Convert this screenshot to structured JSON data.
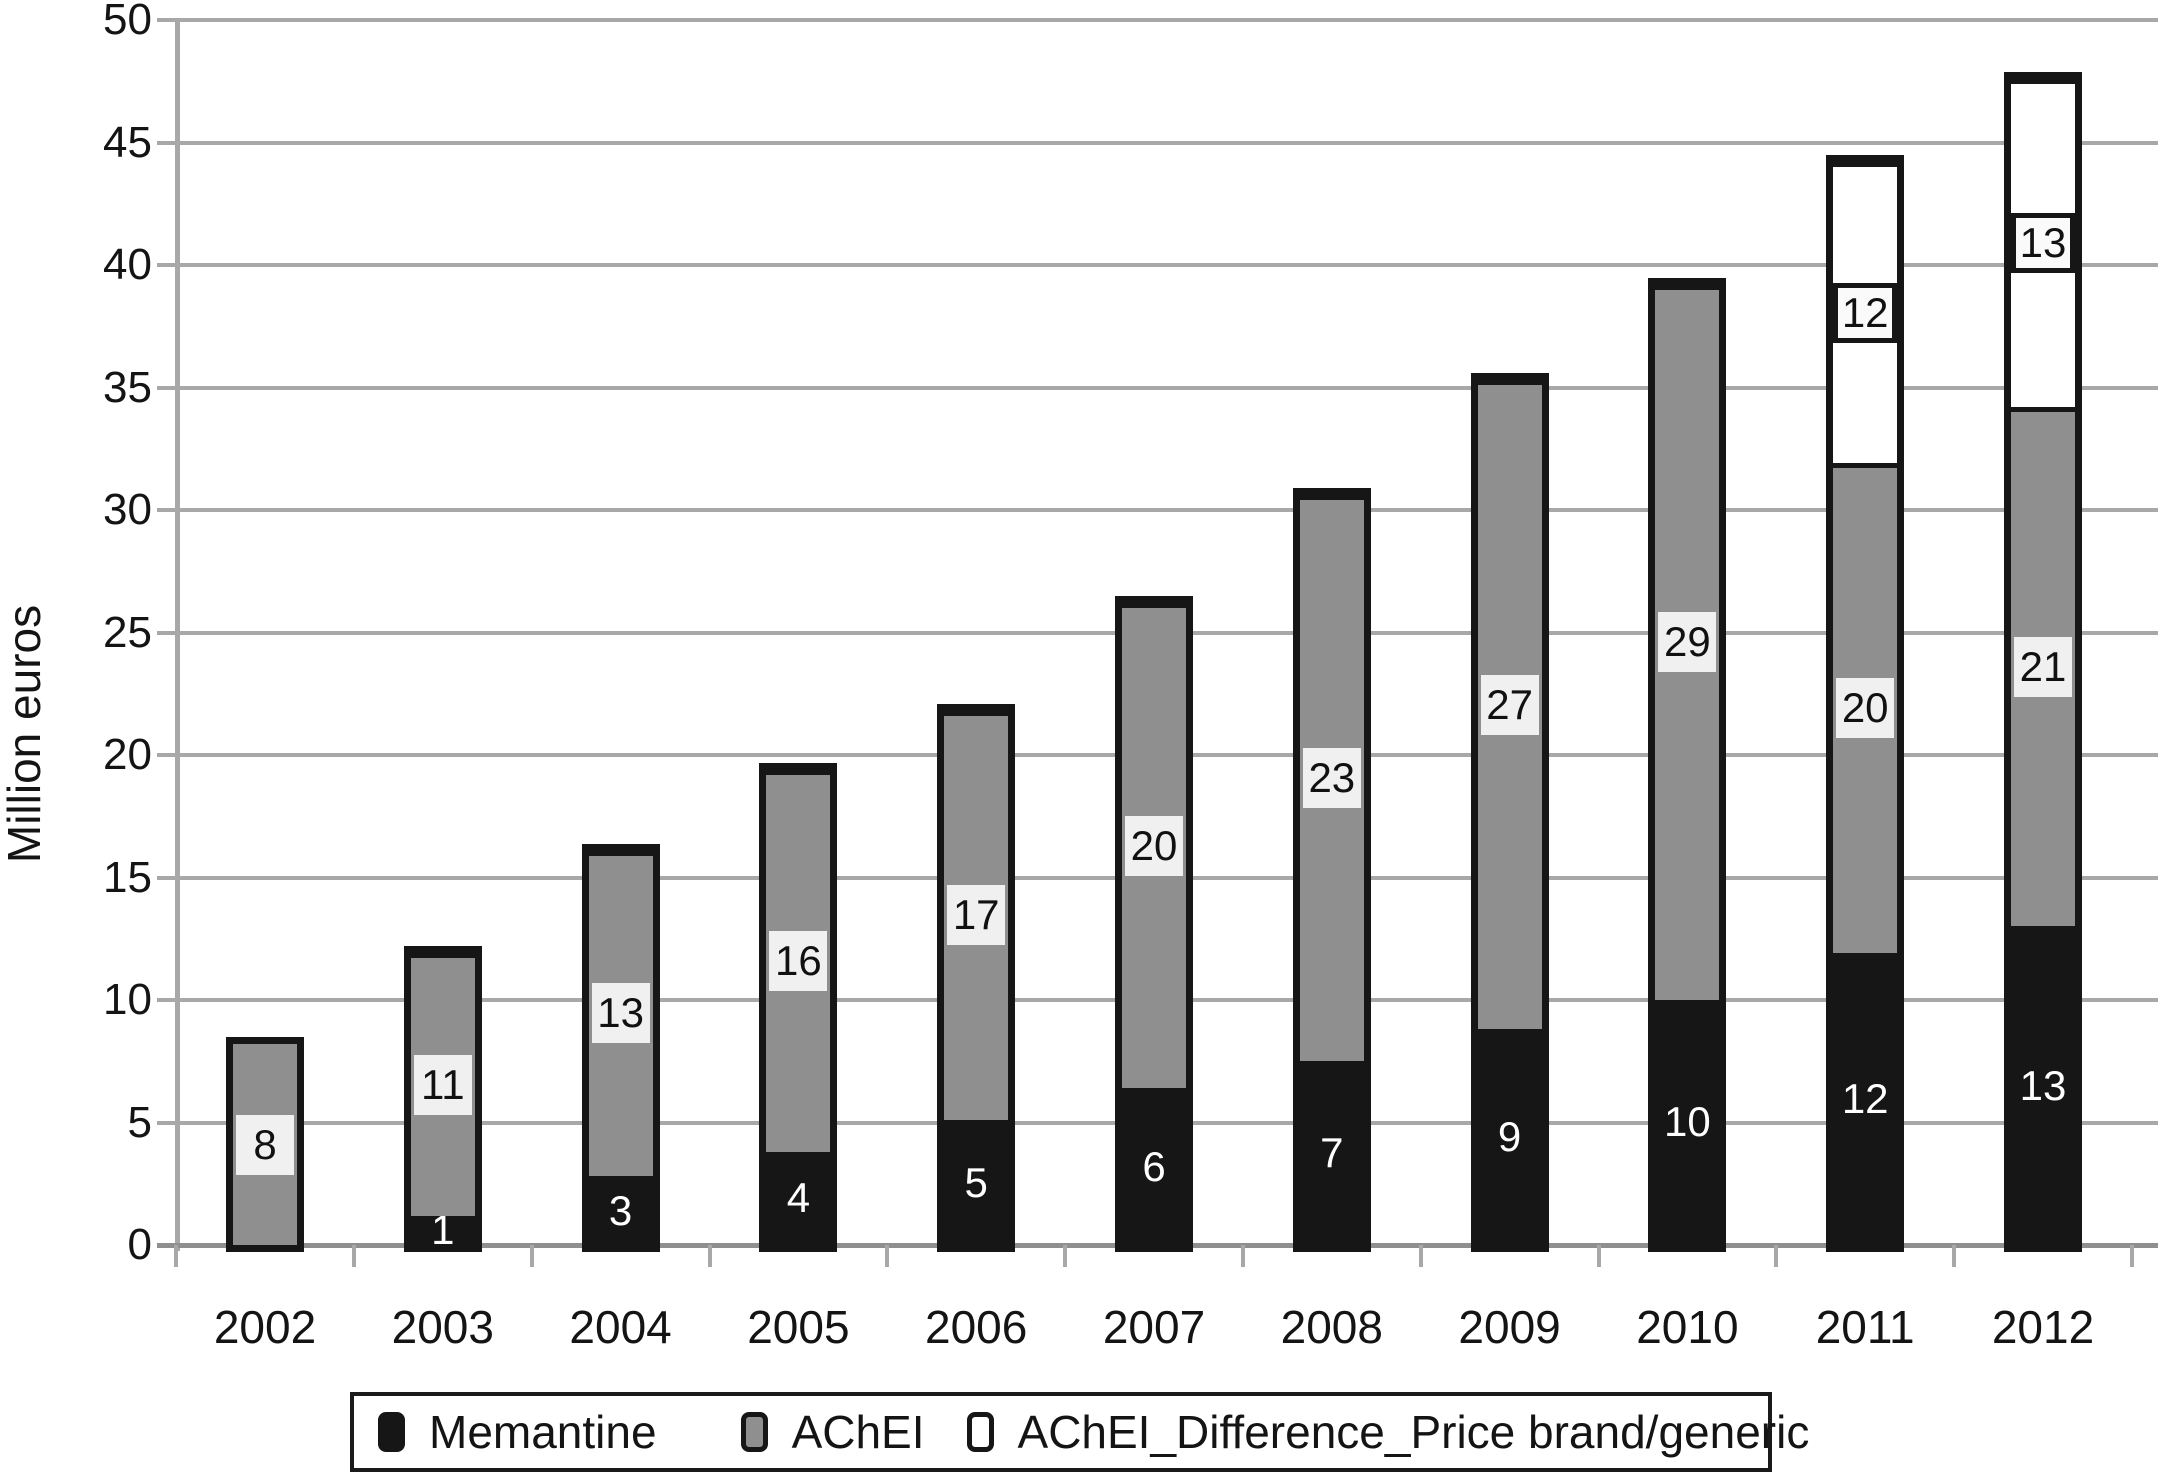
{
  "chart_data": {
    "type": "bar",
    "stacked": true,
    "title": "",
    "xlabel": "",
    "ylabel": "Million euros",
    "ylim": [
      0,
      50
    ],
    "ytick_step": 5,
    "y_tick_labels": [
      "0",
      "5",
      "10",
      "15",
      "20",
      "25",
      "30",
      "35",
      "40",
      "45",
      "50"
    ],
    "grid": true,
    "legend_position": "bottom",
    "categories": [
      "2002",
      "2003",
      "2004",
      "2005",
      "2006",
      "2007",
      "2008",
      "2009",
      "2010",
      "2011",
      "2012"
    ],
    "series": [
      {
        "name": "Memantine",
        "color": "#161616",
        "label_style": "white-text",
        "values": [
          null,
          1,
          3,
          4,
          5,
          6,
          7,
          9,
          10,
          12,
          13
        ],
        "drawn_heights": [
          0,
          1.2,
          2.8,
          3.8,
          5.1,
          6.4,
          7.5,
          8.8,
          10.0,
          11.9,
          13.0
        ]
      },
      {
        "name": "AChEI",
        "color": "#8f8f8f",
        "label_style": "light-box",
        "values": [
          8,
          11,
          13,
          16,
          17,
          20,
          23,
          27,
          29,
          20,
          21
        ],
        "drawn_heights": [
          8.2,
          10.7,
          13.3,
          15.6,
          16.7,
          19.8,
          23.1,
          26.5,
          29.2,
          20.0,
          21.2
        ]
      },
      {
        "name": "AChEI_Difference_Price brand/generic",
        "color": "#ffffff",
        "label_style": "bordered-box",
        "values": [
          null,
          null,
          null,
          null,
          null,
          null,
          null,
          null,
          null,
          12,
          13
        ],
        "drawn_heights": [
          0,
          0,
          0,
          0,
          0,
          0,
          0,
          0,
          0,
          12.3,
          13.4
        ]
      }
    ],
    "totals_drawn": [
      8.2,
      11.9,
      16.1,
      19.4,
      21.8,
      26.2,
      30.6,
      35.3,
      39.2,
      44.2,
      47.6
    ]
  },
  "colors": {
    "memantine": "#161616",
    "achei": "#8f8f8f",
    "difference": "#ffffff",
    "gridline": "#a8a8a8",
    "axis": "#8f8f8f",
    "label_box": "#eff0ef",
    "text": "#141414"
  }
}
